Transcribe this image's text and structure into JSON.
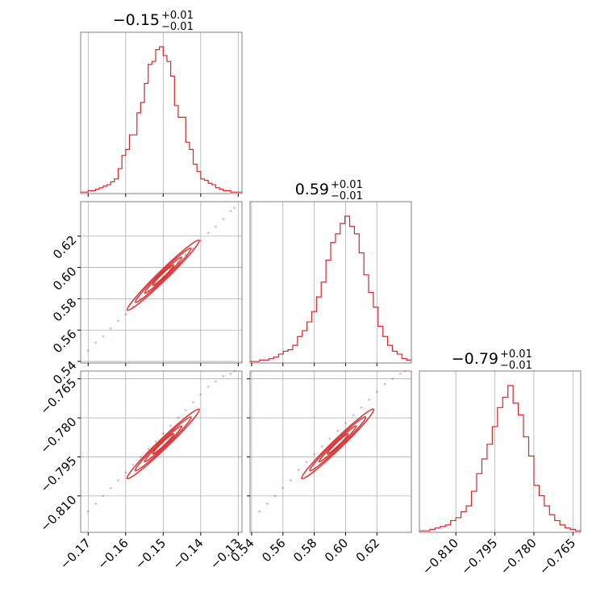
{
  "chart_data": {
    "type": "corner",
    "color": "#d62728",
    "parameters": [
      {
        "title_main": "−0.15",
        "title_sup": "+0.01",
        "title_sub": "−0.01",
        "median": -0.15,
        "range": [
          -0.172,
          -0.129
        ],
        "ticks": [
          -0.17,
          -0.16,
          -0.15,
          -0.14,
          -0.13
        ],
        "tick_labels": [
          "−0.17",
          "−0.16",
          "−0.15",
          "−0.14",
          "−0.13"
        ],
        "hist_x": [
          -0.172,
          -0.171,
          -0.17,
          -0.169,
          -0.168,
          -0.167,
          -0.166,
          -0.165,
          -0.164,
          -0.163,
          -0.162,
          -0.161,
          -0.16,
          -0.159,
          -0.158,
          -0.157,
          -0.156,
          -0.155,
          -0.154,
          -0.153,
          -0.152,
          -0.151,
          -0.15,
          -0.149,
          -0.148,
          -0.147,
          -0.146,
          -0.145,
          -0.144,
          -0.143,
          -0.142,
          -0.141,
          -0.14,
          -0.139,
          -0.138,
          -0.137,
          -0.136,
          -0.135,
          -0.134,
          -0.133,
          -0.132,
          -0.131,
          -0.13
        ],
        "hist_y": [
          1,
          1,
          2,
          2,
          3,
          4,
          5,
          6,
          8,
          10,
          17,
          26,
          30,
          40,
          40,
          55,
          62,
          75,
          88,
          90,
          98,
          100,
          94,
          90,
          80,
          60,
          52,
          52,
          35,
          30,
          20,
          15,
          10,
          9,
          7,
          6,
          4,
          3,
          2,
          2,
          1,
          1,
          1
        ]
      },
      {
        "title_main": "0.59",
        "title_sup": "+0.01",
        "title_sub": "−0.01",
        "median": 0.595,
        "range": [
          0.539,
          0.642
        ],
        "ticks": [
          0.54,
          0.56,
          0.58,
          0.6,
          0.62
        ],
        "tick_labels": [
          "0.54",
          "0.56",
          "0.58",
          "0.60",
          "0.62"
        ],
        "hist_x": [
          0.539,
          0.542,
          0.545,
          0.548,
          0.551,
          0.554,
          0.557,
          0.56,
          0.563,
          0.566,
          0.569,
          0.572,
          0.575,
          0.578,
          0.581,
          0.584,
          0.587,
          0.59,
          0.593,
          0.596,
          0.599,
          0.602,
          0.605,
          0.608,
          0.611,
          0.614,
          0.617,
          0.62,
          0.623,
          0.626,
          0.629,
          0.632,
          0.635,
          0.638
        ],
        "hist_y": [
          1,
          1,
          2,
          2,
          3,
          4,
          6,
          8,
          9,
          12,
          18,
          22,
          28,
          35,
          45,
          55,
          70,
          82,
          88,
          95,
          100,
          93,
          88,
          75,
          60,
          48,
          38,
          25,
          18,
          12,
          8,
          6,
          3,
          2
        ]
      },
      {
        "title_main": "−0.79",
        "title_sup": "+0.01",
        "title_sub": "−0.01",
        "median": -0.79,
        "range": [
          -0.824,
          -0.762
        ],
        "ticks": [
          -0.81,
          -0.795,
          -0.78,
          -0.765
        ],
        "tick_labels": [
          "−0.810",
          "−0.795",
          "−0.780",
          "−0.765"
        ],
        "hist_x": [
          -0.824,
          -0.822,
          -0.82,
          -0.818,
          -0.816,
          -0.814,
          -0.812,
          -0.81,
          -0.808,
          -0.806,
          -0.804,
          -0.802,
          -0.8,
          -0.798,
          -0.796,
          -0.794,
          -0.792,
          -0.79,
          -0.788,
          -0.786,
          -0.784,
          -0.782,
          -0.78,
          -0.778,
          -0.776,
          -0.774,
          -0.772,
          -0.77,
          -0.768,
          -0.766,
          -0.764
        ],
        "hist_y": [
          1,
          1,
          2,
          3,
          4,
          5,
          8,
          10,
          14,
          18,
          28,
          40,
          50,
          60,
          72,
          85,
          92,
          100,
          88,
          80,
          65,
          52,
          32,
          25,
          18,
          12,
          8,
          5,
          3,
          2,
          1
        ]
      }
    ],
    "pairs": [
      {
        "row": 1,
        "col": 0,
        "scatter_x": [
          -0.17,
          -0.168,
          -0.166,
          -0.164,
          -0.162,
          -0.16,
          -0.158,
          -0.156,
          -0.154,
          -0.152,
          -0.15,
          -0.148,
          -0.146,
          -0.144,
          -0.142,
          -0.14,
          -0.138,
          -0.136,
          -0.134,
          -0.132,
          -0.131
        ],
        "scatter_y": [
          0.547,
          0.552,
          0.556,
          0.561,
          0.566,
          0.57,
          0.575,
          0.58,
          0.585,
          0.589,
          0.594,
          0.599,
          0.603,
          0.608,
          0.612,
          0.617,
          0.622,
          0.626,
          0.631,
          0.636,
          0.638
        ]
      },
      {
        "row": 2,
        "col": 0,
        "scatter_x": [
          -0.17,
          -0.168,
          -0.166,
          -0.164,
          -0.162,
          -0.16,
          -0.158,
          -0.156,
          -0.154,
          -0.152,
          -0.15,
          -0.148,
          -0.146,
          -0.144,
          -0.142,
          -0.14,
          -0.138,
          -0.136,
          -0.134,
          -0.132,
          -0.131
        ],
        "scatter_y": [
          -0.816,
          -0.813,
          -0.81,
          -0.807,
          -0.804,
          -0.801,
          -0.798,
          -0.795,
          -0.792,
          -0.789,
          -0.786,
          -0.783,
          -0.78,
          -0.777,
          -0.774,
          -0.771,
          -0.768,
          -0.766,
          -0.764,
          -0.763,
          -0.762
        ]
      },
      {
        "row": 2,
        "col": 1,
        "scatter_x": [
          0.545,
          0.55,
          0.555,
          0.56,
          0.565,
          0.57,
          0.575,
          0.58,
          0.585,
          0.59,
          0.595,
          0.6,
          0.605,
          0.61,
          0.615,
          0.62,
          0.625,
          0.63,
          0.635,
          0.638
        ],
        "scatter_y": [
          -0.816,
          -0.813,
          -0.81,
          -0.807,
          -0.804,
          -0.8,
          -0.797,
          -0.794,
          -0.791,
          -0.788,
          -0.785,
          -0.782,
          -0.779,
          -0.776,
          -0.773,
          -0.77,
          -0.767,
          -0.765,
          -0.763,
          -0.762
        ]
      }
    ]
  }
}
